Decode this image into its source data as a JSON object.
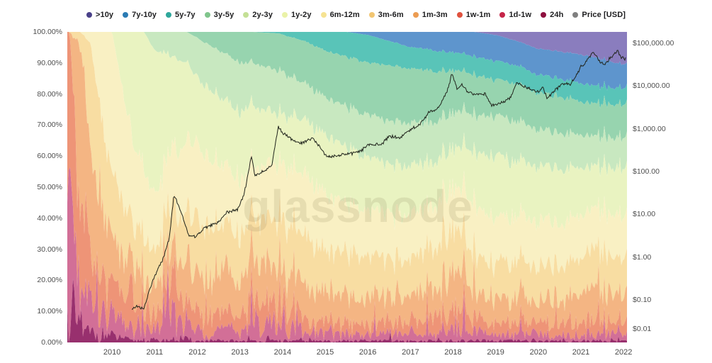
{
  "watermark": "glassnode",
  "legend": {
    "items": [
      {
        "label": ">10y",
        "color": "#4a4189"
      },
      {
        "label": "7y-10y",
        "color": "#2b7bb4"
      },
      {
        "label": "5y-7y",
        "color": "#2fa79b"
      },
      {
        "label": "3y-5y",
        "color": "#80c58c"
      },
      {
        "label": "2y-3y",
        "color": "#c4e096"
      },
      {
        "label": "1y-2y",
        "color": "#eaf2a8"
      },
      {
        "label": "6m-12m",
        "color": "#f6e393"
      },
      {
        "label": "3m-6m",
        "color": "#f2c672"
      },
      {
        "label": "1m-3m",
        "color": "#ec9c52"
      },
      {
        "label": "1w-1m",
        "color": "#e0523f"
      },
      {
        "label": "1d-1w",
        "color": "#c52549"
      },
      {
        "label": "24h",
        "color": "#8e0f3f"
      },
      {
        "label": "Price [USD]",
        "color": "#7f7f7f"
      }
    ]
  },
  "left_axis": {
    "ticks": [
      "100.00%",
      "90.00%",
      "80.00%",
      "70.00%",
      "60.00%",
      "50.00%",
      "40.00%",
      "30.00%",
      "20.00%",
      "10.00%",
      "0.00%"
    ]
  },
  "right_axis": {
    "ticks": [
      {
        "label": "$100,000.00",
        "value": 100000
      },
      {
        "label": "$10,000.00",
        "value": 10000
      },
      {
        "label": "$1,000.00",
        "value": 1000
      },
      {
        "label": "$100.00",
        "value": 100
      },
      {
        "label": "$10.00",
        "value": 10
      },
      {
        "label": "$1.00",
        "value": 1
      },
      {
        "label": "$0.10",
        "value": 0.1
      },
      {
        "label": "$0.01",
        "value": 0.01
      }
    ]
  },
  "x_axis": {
    "ticks": [
      "2010",
      "2011",
      "2012",
      "2013",
      "2014",
      "2015",
      "2016",
      "2017",
      "2018",
      "2019",
      "2020",
      "2021",
      "2022"
    ]
  },
  "chart_data": {
    "type": "area",
    "stacked": "percent",
    "title": "Bitcoin HODL Waves (age distribution of supply) with price overlay",
    "x_range": [
      2008.95,
      2022.08
    ],
    "left_ylim": [
      0,
      100
    ],
    "x": [
      2009.0,
      2009.25,
      2009.5,
      2009.75,
      2010.0,
      2010.5,
      2010.75,
      2011.0,
      2011.4,
      2011.75,
      2012.0,
      2012.5,
      2013.0,
      2013.3,
      2013.9,
      2014.5,
      2015.0,
      2015.5,
      2016.0,
      2016.5,
      2017.0,
      2017.5,
      2018.0,
      2018.5,
      2019.0,
      2019.5,
      2020.0,
      2020.5,
      2021.0,
      2021.3,
      2021.6,
      2022.1
    ],
    "series": [
      {
        "name": ">10y",
        "area_color": "#8a7dbe",
        "noise": 0.02,
        "values": [
          0,
          0,
          0,
          0,
          0,
          0,
          0,
          0,
          0,
          0,
          0,
          0,
          0,
          0,
          0,
          0,
          0,
          0,
          0,
          0,
          0,
          0,
          0,
          0,
          1,
          3,
          5.5,
          6.5,
          7.5,
          8.5,
          9.5,
          11
        ]
      },
      {
        "name": "7y-10y",
        "area_color": "#5e95cd",
        "noise": 0.02,
        "values": [
          0,
          0,
          0,
          0,
          0,
          0,
          0,
          0,
          0,
          0,
          0,
          0,
          0,
          0,
          0,
          0,
          0,
          0,
          1,
          3,
          5,
          6,
          7,
          8,
          8.5,
          8,
          8.5,
          9,
          9.5,
          9.5,
          9,
          7.5
        ]
      },
      {
        "name": "5y-7y",
        "area_color": "#59c4b8",
        "noise": 0.03,
        "values": [
          0,
          0,
          0,
          0,
          0,
          0,
          0,
          0,
          0,
          0,
          0,
          0,
          0,
          0,
          0.5,
          3,
          6,
          8,
          9,
          8,
          7,
          7,
          6,
          6,
          6,
          6,
          6,
          6,
          6,
          6,
          5.5,
          5.5
        ]
      },
      {
        "name": "3y-5y",
        "area_color": "#97d4af",
        "noise": 0.03,
        "values": [
          0,
          0,
          0,
          0,
          0,
          0,
          0,
          0,
          0,
          0,
          2,
          6,
          10,
          10,
          12,
          14,
          15,
          16,
          17,
          18,
          18,
          17,
          14,
          13,
          12,
          12,
          12,
          12,
          11,
          11,
          11,
          11
        ]
      },
      {
        "name": "2y-3y",
        "area_color": "#c8e8c0",
        "noise": 0.04,
        "values": [
          0,
          0,
          0,
          0,
          0,
          0,
          0,
          6,
          8,
          10,
          13,
          15,
          16,
          14,
          14,
          12,
          12,
          13,
          14,
          14,
          14,
          13,
          12,
          12,
          13,
          13,
          12,
          12,
          11,
          10,
          10,
          10
        ]
      },
      {
        "name": "1y-2y",
        "area_color": "#e9f3c1",
        "noise": 0.05,
        "values": [
          0,
          0,
          0,
          0,
          0,
          38,
          45,
          48,
          30,
          26,
          22,
          22,
          22,
          20,
          16,
          18,
          19,
          18,
          17,
          16,
          16,
          14,
          13,
          17,
          20,
          18,
          18,
          18,
          16,
          14,
          15,
          16
        ]
      },
      {
        "name": "6m-12m",
        "area_color": "#f9f0c3",
        "noise": 0.08,
        "values": [
          0,
          0,
          4,
          30,
          45,
          28,
          22,
          18,
          18,
          24,
          24,
          20,
          18,
          16,
          18,
          20,
          18,
          16,
          15,
          15,
          14,
          14,
          14,
          16,
          15,
          14,
          15,
          14,
          14,
          13,
          14,
          14
        ]
      },
      {
        "name": "3m-6m",
        "area_color": "#f8dda2",
        "noise": 0.18,
        "values": [
          0,
          4,
          35,
          28,
          22,
          14,
          13,
          12,
          14,
          16,
          17,
          15,
          14,
          13,
          15,
          15,
          13,
          14,
          13,
          12,
          12,
          13,
          14,
          12,
          11,
          12,
          11,
          11,
          12,
          13,
          12,
          12
        ]
      },
      {
        "name": "1m-3m",
        "area_color": "#f4b583",
        "noise": 0.35,
        "values": [
          0,
          55,
          30,
          20,
          15,
          10,
          9,
          8,
          12,
          12,
          11,
          12,
          11,
          13,
          12,
          10,
          9,
          9,
          8,
          8,
          8,
          9,
          13,
          8,
          7,
          8,
          7,
          7,
          9,
          10,
          9,
          8
        ]
      },
      {
        "name": "1w-1m",
        "area_color": "#ee9477",
        "noise": 0.55,
        "values": [
          55,
          25,
          18,
          12,
          10,
          6,
          6.5,
          4.5,
          9,
          6,
          5,
          5,
          5,
          8,
          7,
          4,
          4,
          3.5,
          3.5,
          3.5,
          3.5,
          4.5,
          6,
          4,
          3.5,
          3.5,
          3.5,
          3.5,
          3.5,
          4.5,
          4,
          3.5
        ]
      },
      {
        "name": "1d-1w",
        "area_color": "#d26f97",
        "noise": 0.9,
        "values": [
          35,
          12,
          10,
          7,
          6,
          3.5,
          3.5,
          3,
          8,
          5,
          3.5,
          3.5,
          3.5,
          5.5,
          5.5,
          2.5,
          2.5,
          2,
          2,
          2,
          2,
          2,
          3.5,
          3,
          2,
          2,
          2,
          2,
          2,
          2.5,
          2.5,
          2
        ]
      },
      {
        "name": "24h",
        "area_color": "#98306e",
        "noise": 1.2,
        "values": [
          10,
          4,
          3,
          3,
          2,
          0.5,
          1,
          0.5,
          1,
          1,
          0.5,
          0.5,
          0.5,
          0.5,
          0.5,
          0.5,
          0.5,
          0.5,
          0.5,
          0.5,
          0.5,
          0.5,
          0.5,
          0.5,
          0.5,
          0.5,
          0.5,
          0.5,
          0.5,
          0.5,
          0.5,
          0.5
        ]
      }
    ],
    "price": {
      "name": "Price [USD]",
      "line_color": "#20241c",
      "log_axis_top": 100000,
      "log_axis_bottom": 0.01,
      "points": [
        [
          2010.45,
          0.06
        ],
        [
          2010.6,
          0.07
        ],
        [
          2010.75,
          0.06
        ],
        [
          2010.9,
          0.2
        ],
        [
          2011.05,
          0.45
        ],
        [
          2011.2,
          0.9
        ],
        [
          2011.35,
          3
        ],
        [
          2011.45,
          29
        ],
        [
          2011.6,
          13
        ],
        [
          2011.8,
          3.2
        ],
        [
          2011.95,
          3
        ],
        [
          2012.2,
          5
        ],
        [
          2012.5,
          6.5
        ],
        [
          2012.7,
          11
        ],
        [
          2012.95,
          13
        ],
        [
          2013.1,
          30
        ],
        [
          2013.27,
          230
        ],
        [
          2013.35,
          80
        ],
        [
          2013.55,
          100
        ],
        [
          2013.75,
          140
        ],
        [
          2013.9,
          1100
        ],
        [
          2014.0,
          800
        ],
        [
          2014.15,
          620
        ],
        [
          2014.4,
          450
        ],
        [
          2014.7,
          600
        ],
        [
          2014.9,
          350
        ],
        [
          2015.05,
          220
        ],
        [
          2015.3,
          240
        ],
        [
          2015.6,
          260
        ],
        [
          2015.85,
          310
        ],
        [
          2016.0,
          430
        ],
        [
          2016.3,
          420
        ],
        [
          2016.5,
          670
        ],
        [
          2016.75,
          610
        ],
        [
          2017.0,
          980
        ],
        [
          2017.2,
          1200
        ],
        [
          2017.45,
          2500
        ],
        [
          2017.6,
          2700
        ],
        [
          2017.75,
          4300
        ],
        [
          2017.9,
          9800
        ],
        [
          2017.97,
          19200
        ],
        [
          2018.1,
          8500
        ],
        [
          2018.2,
          11000
        ],
        [
          2018.35,
          7000
        ],
        [
          2018.55,
          6400
        ],
        [
          2018.75,
          6500
        ],
        [
          2018.9,
          3600
        ],
        [
          2019.0,
          3700
        ],
        [
          2019.15,
          4000
        ],
        [
          2019.35,
          5300
        ],
        [
          2019.5,
          12300
        ],
        [
          2019.65,
          9800
        ],
        [
          2019.85,
          8000
        ],
        [
          2020.0,
          7200
        ],
        [
          2020.1,
          9800
        ],
        [
          2020.2,
          5000
        ],
        [
          2020.45,
          9000
        ],
        [
          2020.6,
          11500
        ],
        [
          2020.75,
          10500
        ],
        [
          2020.9,
          18000
        ],
        [
          2021.0,
          29000
        ],
        [
          2021.1,
          35000
        ],
        [
          2021.3,
          62000
        ],
        [
          2021.45,
          36000
        ],
        [
          2021.55,
          31500
        ],
        [
          2021.7,
          46000
        ],
        [
          2021.85,
          67000
        ],
        [
          2021.95,
          47000
        ],
        [
          2022.05,
          43500
        ]
      ]
    }
  }
}
